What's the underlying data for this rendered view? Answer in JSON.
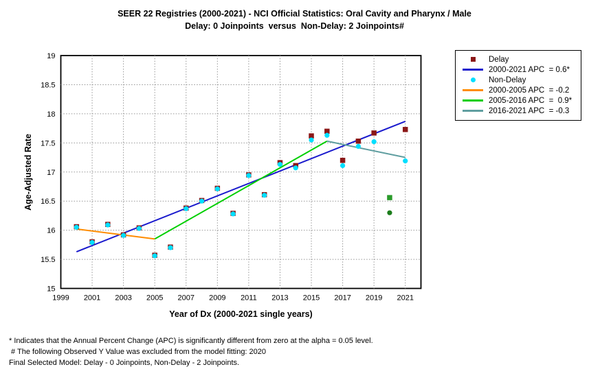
{
  "title": {
    "line1": "SEER 22 Registries (2000-2021) - NCI Official Statistics: Oral Cavity and Pharynx / Male",
    "line2": "Delay: 0 Joinpoints  versus  Non-Delay: 2 Joinpoints#"
  },
  "legend": {
    "items": [
      {
        "swatch": "square",
        "color": "#8b1717",
        "label": "Delay"
      },
      {
        "swatch": "line",
        "color": "#1a1acd",
        "label": "2000-2021 APC  = 0.6*"
      },
      {
        "swatch": "circle",
        "color": "#00dfff",
        "label": "Non-Delay"
      },
      {
        "swatch": "line",
        "color": "#ff8c00",
        "label": "2000-2005 APC  = -0.2"
      },
      {
        "swatch": "line",
        "color": "#00cf00",
        "label": "2005-2016 APC  =  0.9*"
      },
      {
        "swatch": "line",
        "color": "#5f9ea0",
        "label": "2016-2021 APC  = -0.3"
      }
    ]
  },
  "footnotes": [
    "* Indicates that the Annual Percent Change (APC) is significantly different from zero at the alpha = 0.05 level.",
    " # The following Observed Y Value was excluded from the model fitting: 2020",
    "Final Selected Model: Delay - 0 Joinpoints, Non-Delay - 2 Joinpoints."
  ],
  "chart_data": {
    "type": "scatter",
    "title": "SEER 22 Registries (2000-2021) - NCI Official Statistics: Oral Cavity and Pharynx / Male",
    "subtitle": "Delay: 0 Joinpoints versus Non-Delay: 2 Joinpoints#",
    "xlabel": "Year of Dx (2000-2021 single years)",
    "ylabel": "Age-Adjusted Rate",
    "xlim": [
      1999,
      2022
    ],
    "ylim": [
      15,
      19
    ],
    "x_ticks": [
      1999,
      2001,
      2003,
      2005,
      2007,
      2009,
      2011,
      2013,
      2015,
      2017,
      2019,
      2021
    ],
    "y_ticks": [
      15,
      15.5,
      16,
      16.5,
      17,
      17.5,
      18,
      18.5,
      19
    ],
    "grid": "dotted",
    "years": [
      2000,
      2001,
      2002,
      2003,
      2004,
      2005,
      2006,
      2007,
      2008,
      2009,
      2010,
      2011,
      2012,
      2013,
      2014,
      2015,
      2016,
      2017,
      2018,
      2019,
      2020,
      2021
    ],
    "series": [
      {
        "name": "Delay",
        "marker": "square",
        "color": "#8b1717",
        "values": [
          16.06,
          15.8,
          16.1,
          15.92,
          16.04,
          15.57,
          15.71,
          16.38,
          16.51,
          16.72,
          16.29,
          16.95,
          16.61,
          17.16,
          17.11,
          17.62,
          17.7,
          17.2,
          17.53,
          17.67,
          16.56,
          17.73
        ]
      },
      {
        "name": "Non-Delay",
        "marker": "circle",
        "color": "#00dfff",
        "values": [
          16.05,
          15.79,
          16.09,
          15.91,
          16.03,
          15.56,
          15.7,
          16.37,
          16.5,
          16.71,
          16.28,
          16.94,
          16.6,
          17.13,
          17.07,
          17.55,
          17.63,
          17.11,
          17.44,
          17.52,
          16.3,
          17.19
        ]
      }
    ],
    "excluded_years": [
      2020
    ],
    "excluded_colors": {
      "square": "#2a9a2a",
      "circle": "#1c7d1c"
    },
    "fit_lines": [
      {
        "name": "2000-2021 APC = 0.6*",
        "series": "Delay",
        "color": "#1a1acd",
        "points": [
          [
            2000,
            15.63
          ],
          [
            2021,
            17.87
          ]
        ]
      },
      {
        "name": "2000-2005 APC = -0.2",
        "series": "Non-Delay",
        "color": "#ff8c00",
        "points": [
          [
            2000,
            16.02
          ],
          [
            2005,
            15.85
          ]
        ]
      },
      {
        "name": "2005-2016 APC = 0.9*",
        "series": "Non-Delay",
        "color": "#00cf00",
        "points": [
          [
            2005,
            15.85
          ],
          [
            2016,
            17.53
          ]
        ]
      },
      {
        "name": "2016-2021 APC = -0.3",
        "series": "Non-Delay",
        "color": "#5f9ea0",
        "points": [
          [
            2016,
            17.53
          ],
          [
            2021,
            17.25
          ]
        ]
      }
    ],
    "legend_position": "top-right-outside"
  }
}
